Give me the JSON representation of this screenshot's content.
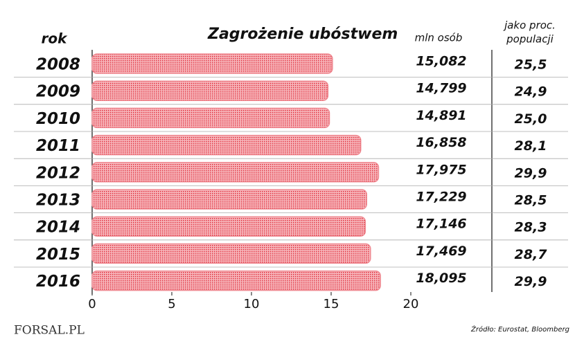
{
  "chart_data": {
    "type": "bar",
    "orientation": "horizontal",
    "title": "Zagrożenie ubóstwem",
    "category_label": "rok",
    "categories": [
      "2008",
      "2009",
      "2010",
      "2011",
      "2012",
      "2013",
      "2014",
      "2015",
      "2016"
    ],
    "values": [
      15.082,
      14.799,
      14.891,
      16.858,
      17.975,
      17.229,
      17.146,
      17.469,
      18.095
    ],
    "value_labels": [
      "15,082",
      "14,799",
      "14,891",
      "16,858",
      "17,975",
      "17,229",
      "17,146",
      "17,469",
      "18,095"
    ],
    "value_column_label": "mln osób",
    "share_column_label": [
      "jako proc.",
      "populacji"
    ],
    "share": {
      "values": [
        25.5,
        24.9,
        25.0,
        28.1,
        29.9,
        28.5,
        28.3,
        28.7,
        29.9
      ],
      "value_labels": [
        "25,5",
        "24,9",
        "25,0",
        "28,1",
        "29,9",
        "28,5",
        "28,3",
        "28,7",
        "29,9"
      ]
    },
    "color": "#ef8a92",
    "xlim": [
      0,
      20
    ],
    "xticks": [
      0,
      5,
      10,
      15,
      20
    ],
    "source": "Źródło: Eurostat,  Bloomberg",
    "logo": "FORSAL.PL"
  }
}
